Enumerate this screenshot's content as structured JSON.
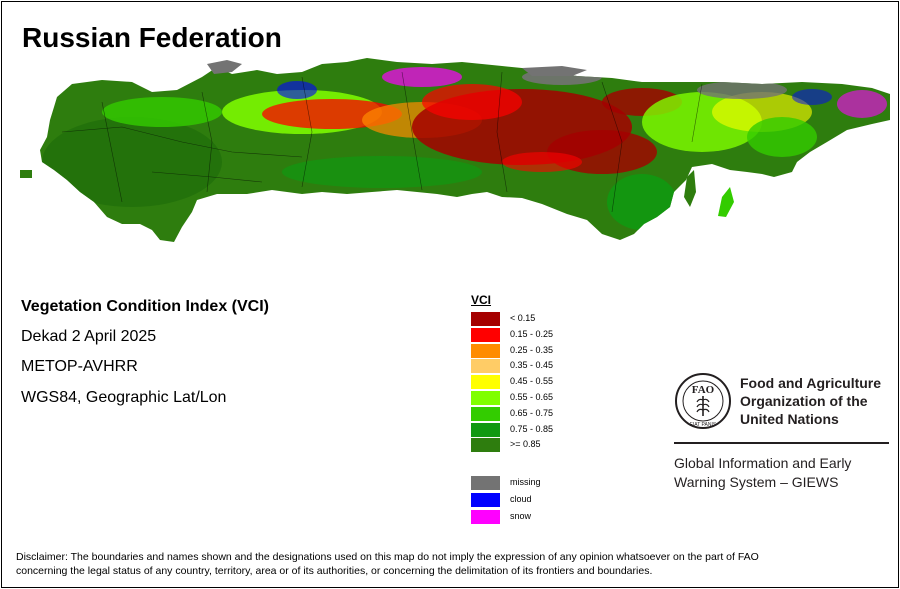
{
  "title": "Russian Federation",
  "info": {
    "index_name": "Vegetation Condition Index (VCI)",
    "period": "Dekad 2 April 2025",
    "sensor": "METOP-AVHRR",
    "projection": "WGS84, Geographic Lat/Lon"
  },
  "legend": {
    "title": "VCI",
    "classes": [
      {
        "label": "< 0.15",
        "color": "#a50000"
      },
      {
        "label": "0.15 - 0.25",
        "color": "#ff0000"
      },
      {
        "label": "0.25 - 0.35",
        "color": "#ff8c00"
      },
      {
        "label": "0.35 - 0.45",
        "color": "#ffcc66"
      },
      {
        "label": "0.45 - 0.55",
        "color": "#ffff00"
      },
      {
        "label": "0.55 - 0.65",
        "color": "#80ff00"
      },
      {
        "label": "0.65 - 0.75",
        "color": "#33cc00"
      },
      {
        "label": "0.75 - 0.85",
        "color": "#119911"
      },
      {
        "label": ">= 0.85",
        "color": "#2e7d0e"
      }
    ],
    "special": [
      {
        "label": "missing",
        "color": "#737373"
      },
      {
        "label": "cloud",
        "color": "#0000ff"
      },
      {
        "label": "snow",
        "color": "#ff00ff"
      }
    ]
  },
  "fao": {
    "org_line1": "Food and Agriculture",
    "org_line2": "Organization of the",
    "org_line3": "United Nations",
    "giews_line1": "Global Information and Early",
    "giews_line2": "Warning System – GIEWS",
    "emblem_letters": "FAO",
    "emblem_motto": "FIAT PANIS"
  },
  "disclaimer_line1": "Disclaimer: The boundaries and names shown and the designations used on this map do not imply the expression of any opinion whatsoever on the part of FAO",
  "disclaimer_line2": "concerning the legal status of any country, territory, area or of its authorities, or concerning the delimitation of its frontiers and boundaries."
}
